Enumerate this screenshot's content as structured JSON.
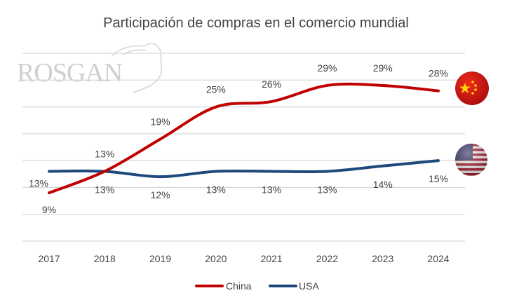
{
  "logo": {
    "text": "ROSGAN"
  },
  "chart_data": {
    "type": "line",
    "title": "Participación de compras en el comercio mundial",
    "xlabel": "",
    "ylabel": "",
    "categories": [
      "2017",
      "2018",
      "2019",
      "2020",
      "2021",
      "2022",
      "2023",
      "2024"
    ],
    "series": [
      {
        "name": "China",
        "values": [
          9,
          13,
          19,
          25,
          26,
          29,
          29,
          28
        ],
        "labels": [
          "9%",
          "13%",
          "19%",
          "25%",
          "26%",
          "29%",
          "29%",
          "28%"
        ],
        "color": "#c00000",
        "flag": "china-flag-icon"
      },
      {
        "name": "USA",
        "values": [
          13,
          13,
          12,
          13,
          13,
          13,
          14,
          15
        ],
        "labels": [
          "13%",
          "13%",
          "12%",
          "13%",
          "13%",
          "13%",
          "14%",
          "15%"
        ],
        "color": "#1f497d",
        "flag": "usa-flag-icon"
      }
    ],
    "ylim": [
      0,
      35
    ],
    "y_grid_step": 5,
    "y_axis_labels_shown": false,
    "grid": true,
    "smooth": true,
    "legend_position": "bottom"
  }
}
